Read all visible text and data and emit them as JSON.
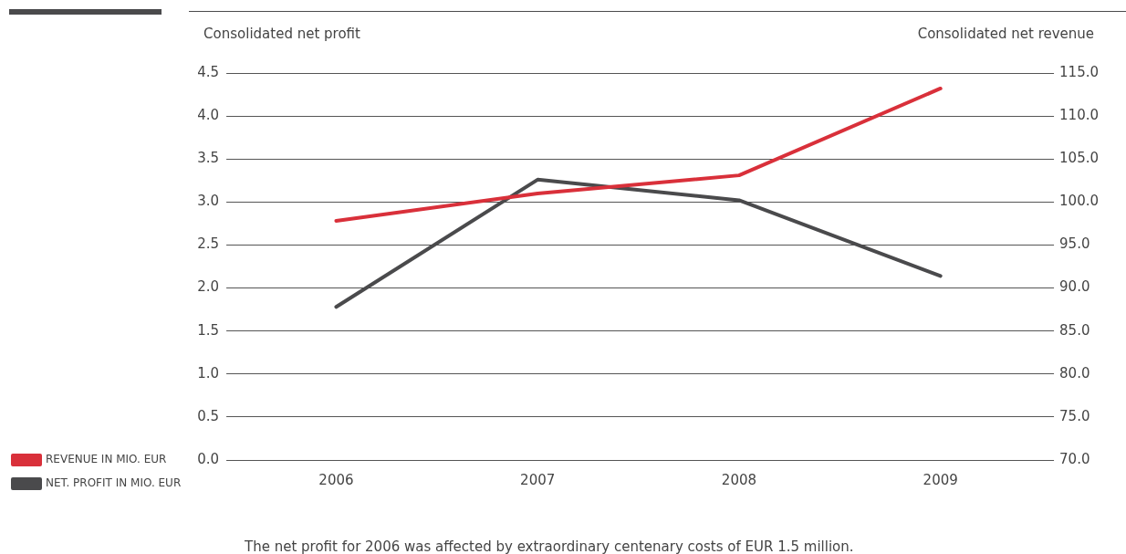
{
  "chart_data": {
    "type": "line",
    "ylabel": "Consolidated net profit",
    "y2label": "Consolidated net revenue",
    "categories": [
      "2006",
      "2007",
      "2008",
      "2009"
    ],
    "series": [
      {
        "name": "REVENUE IN MIO. EUR",
        "color": "#d9303a",
        "axis": "y2",
        "values": [
          97.8,
          101.0,
          103.1,
          113.2
        ]
      },
      {
        "name": "NET. PROFIT IN MIO. EUR",
        "color": "#4a4a4c",
        "values": [
          1.78,
          3.26,
          3.02,
          2.14
        ]
      }
    ],
    "ylim": [
      0,
      4.5
    ],
    "yticks": [
      {
        "value": 0,
        "label": "0.0"
      },
      {
        "value": 0.5,
        "label": "0.5"
      },
      {
        "value": 1,
        "label": "1.0"
      },
      {
        "value": 1.5,
        "label": "1.5"
      },
      {
        "value": 2,
        "label": "2.0"
      },
      {
        "value": 2.5,
        "label": "2.5"
      },
      {
        "value": 3,
        "label": "3.0"
      },
      {
        "value": 3.5,
        "label": "3.5"
      },
      {
        "value": 4,
        "label": "4.0"
      },
      {
        "value": 4.5,
        "label": "4.5"
      }
    ],
    "y2lim": [
      70,
      115
    ],
    "y2ticks": [
      {
        "value": 70,
        "label": "70.0"
      },
      {
        "value": 75,
        "label": "75.0"
      },
      {
        "value": 80,
        "label": "80.0"
      },
      {
        "value": 85,
        "label": "85.0"
      },
      {
        "value": 90,
        "label": "90.0"
      },
      {
        "value": 95,
        "label": "95.0"
      },
      {
        "value": 100,
        "label": "100.0"
      },
      {
        "value": 105,
        "label": "105.0"
      },
      {
        "value": 110,
        "label": "110.0"
      },
      {
        "value": 115,
        "label": "115.0"
      }
    ],
    "grid": "y",
    "legend": "left",
    "marker": "none",
    "line_style": "solid",
    "annotations": [
      "The net profit for 2006 was affected by extraordinary centenary costs of EUR 1.5 million."
    ]
  }
}
